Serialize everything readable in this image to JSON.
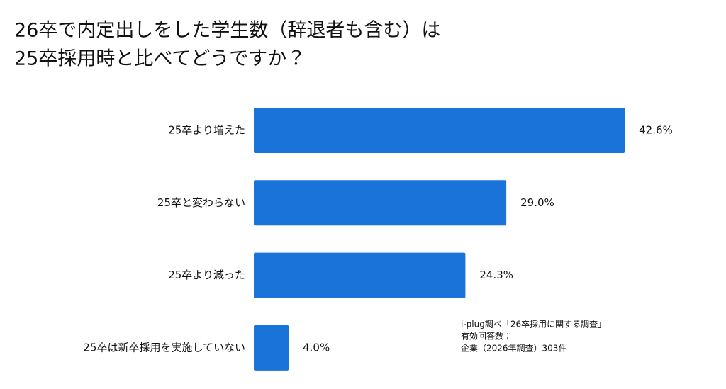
{
  "chart_data": {
    "type": "bar",
    "orientation": "horizontal",
    "title": [
      "26卒で内定出しをした学生数（辞退者も含む）は",
      "25卒採用時と比べてどうですか？"
    ],
    "categories": [
      "25卒より増えた",
      "25卒と変わらない",
      "25卒より減った",
      "25卒は新卒採用を実施していない"
    ],
    "values": [
      42.6,
      29.0,
      24.3,
      4.0
    ],
    "value_labels": [
      "42.6%",
      "29.0%",
      "24.3%",
      "4.0%"
    ],
    "color": "#1a73d8",
    "notes": [
      "i-plug調べ「26卒採用に関する調査」",
      "有効回答数：",
      "企業（2026年調査）303件"
    ]
  }
}
